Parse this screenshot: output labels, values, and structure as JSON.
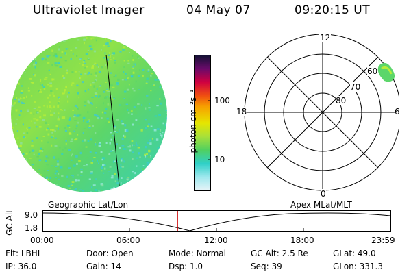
{
  "header": {
    "title": "Ultraviolet Imager",
    "date": "04 May 07",
    "time": "09:20:15 UT"
  },
  "colorbar": {
    "label": "photon cm⁻²s⁻¹",
    "ticks": [
      "100",
      "10"
    ]
  },
  "polar_plot": {
    "mlt_labels": {
      "top": "12",
      "left": "18",
      "right": "6",
      "bottom": "0"
    },
    "lat_labels": [
      "60",
      "70",
      "80"
    ]
  },
  "timeline": {
    "ylabel": "GC Alt",
    "y_ticks": [
      "9.0",
      "1.8"
    ],
    "left_caption": "Geographic Lat/Lon",
    "right_caption": "Apex MLat/MLT",
    "x_ticks": [
      "00:00",
      "06:00",
      "12:00",
      "18:00",
      "23:59"
    ],
    "current_time_fraction": 0.387
  },
  "info": {
    "row1": [
      {
        "key": "Flt:",
        "value": "LBHL"
      },
      {
        "key": "Door:",
        "value": "Open"
      },
      {
        "key": "Mode:",
        "value": "Normal"
      },
      {
        "key": "GC Alt:",
        "value": "2.5 Re"
      },
      {
        "key": "GLat:",
        "value": "49.0"
      }
    ],
    "row2": [
      {
        "key": "IP:",
        "value": "36.0"
      },
      {
        "key": "Gain:",
        "value": "14"
      },
      {
        "key": "Dsp:",
        "value": "1.0"
      },
      {
        "key": "Seq:",
        "value": "39"
      },
      {
        "key": "GLon:",
        "value": "331.3"
      }
    ]
  },
  "colors": {
    "disk_base": "#5cd66a",
    "disk_light": "#b6ee3a",
    "disk_cyan": "#2fd0c8",
    "marker": "#cc0000"
  }
}
